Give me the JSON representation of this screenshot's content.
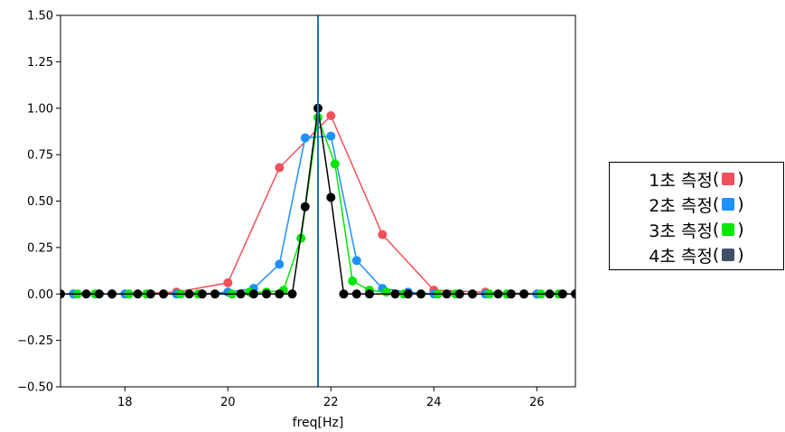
{
  "chart_data": {
    "type": "line",
    "title": "",
    "xlabel": "freq[Hz]",
    "ylabel": "",
    "xlim": [
      16.75,
      26.75
    ],
    "ylim": [
      -0.5,
      1.5
    ],
    "xticks": [
      18,
      20,
      22,
      24,
      26
    ],
    "yticks": [
      -0.5,
      -0.25,
      0.0,
      0.25,
      0.5,
      0.75,
      1.0,
      1.25,
      1.5
    ],
    "xtick_labels": [
      "18",
      "20",
      "22",
      "24",
      "26"
    ],
    "ytick_labels": [
      "−0.50",
      "−0.25",
      "0.00",
      "0.25",
      "0.50",
      "0.75",
      "1.00",
      "1.25",
      "1.50"
    ],
    "vline_x": 21.75,
    "vline_color": "#1f77b4",
    "grid": false,
    "series": [
      {
        "name": "1초 측정",
        "color": "#f0505a",
        "x": [
          17,
          18,
          19,
          20,
          21,
          22,
          23,
          24,
          25,
          26
        ],
        "y": [
          0.0,
          0.0,
          0.01,
          0.06,
          0.68,
          0.96,
          0.32,
          0.02,
          0.01,
          0.0
        ]
      },
      {
        "name": "2초 측정",
        "color": "#1e90ff",
        "x": [
          17,
          17.5,
          18,
          18.5,
          19,
          19.5,
          20,
          20.5,
          21,
          21.5,
          22,
          22.5,
          23,
          23.5,
          24,
          24.5,
          25,
          25.5,
          26,
          26.5
        ],
        "y": [
          0.0,
          0.0,
          0.0,
          0.0,
          0.0,
          0.0,
          0.01,
          0.03,
          0.16,
          0.84,
          0.85,
          0.18,
          0.03,
          0.01,
          0.0,
          0.0,
          0.0,
          0.0,
          0.0,
          0.0
        ]
      },
      {
        "name": "3초 측정",
        "color": "#00e800",
        "x": [
          16.75,
          17.08,
          17.42,
          17.75,
          18.08,
          18.42,
          18.75,
          19.08,
          19.42,
          19.75,
          20.08,
          20.42,
          20.75,
          21.08,
          21.42,
          21.75,
          22.08,
          22.42,
          22.75,
          23.08,
          23.42,
          23.75,
          24.08,
          24.42,
          24.75,
          25.08,
          25.42,
          25.75,
          26.08,
          26.42,
          26.75
        ],
        "y": [
          0.0,
          0.0,
          0.0,
          0.0,
          0.0,
          0.0,
          0.0,
          0.0,
          0.0,
          0.0,
          0.0,
          0.01,
          0.01,
          0.02,
          0.3,
          0.95,
          0.7,
          0.07,
          0.02,
          0.01,
          0.0,
          0.0,
          0.0,
          0.0,
          0.0,
          0.0,
          0.0,
          0.0,
          0.0,
          0.0,
          0.0
        ]
      },
      {
        "name": "4초 측정",
        "color": "#000000",
        "x": [
          16.75,
          17.25,
          17.5,
          17.75,
          18.25,
          18.5,
          18.75,
          19.25,
          19.5,
          19.75,
          20.25,
          20.5,
          20.75,
          21.0,
          21.25,
          21.5,
          21.75,
          22.0,
          22.25,
          22.5,
          22.75,
          23.25,
          23.5,
          23.75,
          24.25,
          24.5,
          24.75,
          25.25,
          25.5,
          25.75,
          26.25,
          26.5,
          26.75
        ],
        "y": [
          0.0,
          0.0,
          0.0,
          0.0,
          0.0,
          0.0,
          0.0,
          0.0,
          0.0,
          0.0,
          0.0,
          0.0,
          0.0,
          0.0,
          0.0,
          0.47,
          1.0,
          0.52,
          0.0,
          0.0,
          0.0,
          0.0,
          0.0,
          0.0,
          0.0,
          0.0,
          0.0,
          0.0,
          0.0,
          0.0,
          0.0,
          0.0,
          0.0
        ]
      }
    ],
    "legend": {
      "placement": "right",
      "entries": [
        {
          "label": "1초 측정",
          "open": "(",
          "close": ")",
          "swatch_color": "#f0505a"
        },
        {
          "label": "2초 측정",
          "open": "(",
          "close": ")",
          "swatch_color": "#1e90ff"
        },
        {
          "label": "3초 측정",
          "open": "(",
          "close": ")",
          "swatch_color": "#00e800"
        },
        {
          "label": "4초 측정",
          "open": "(",
          "close": ")",
          "swatch_color": "#3f5068"
        }
      ]
    }
  }
}
